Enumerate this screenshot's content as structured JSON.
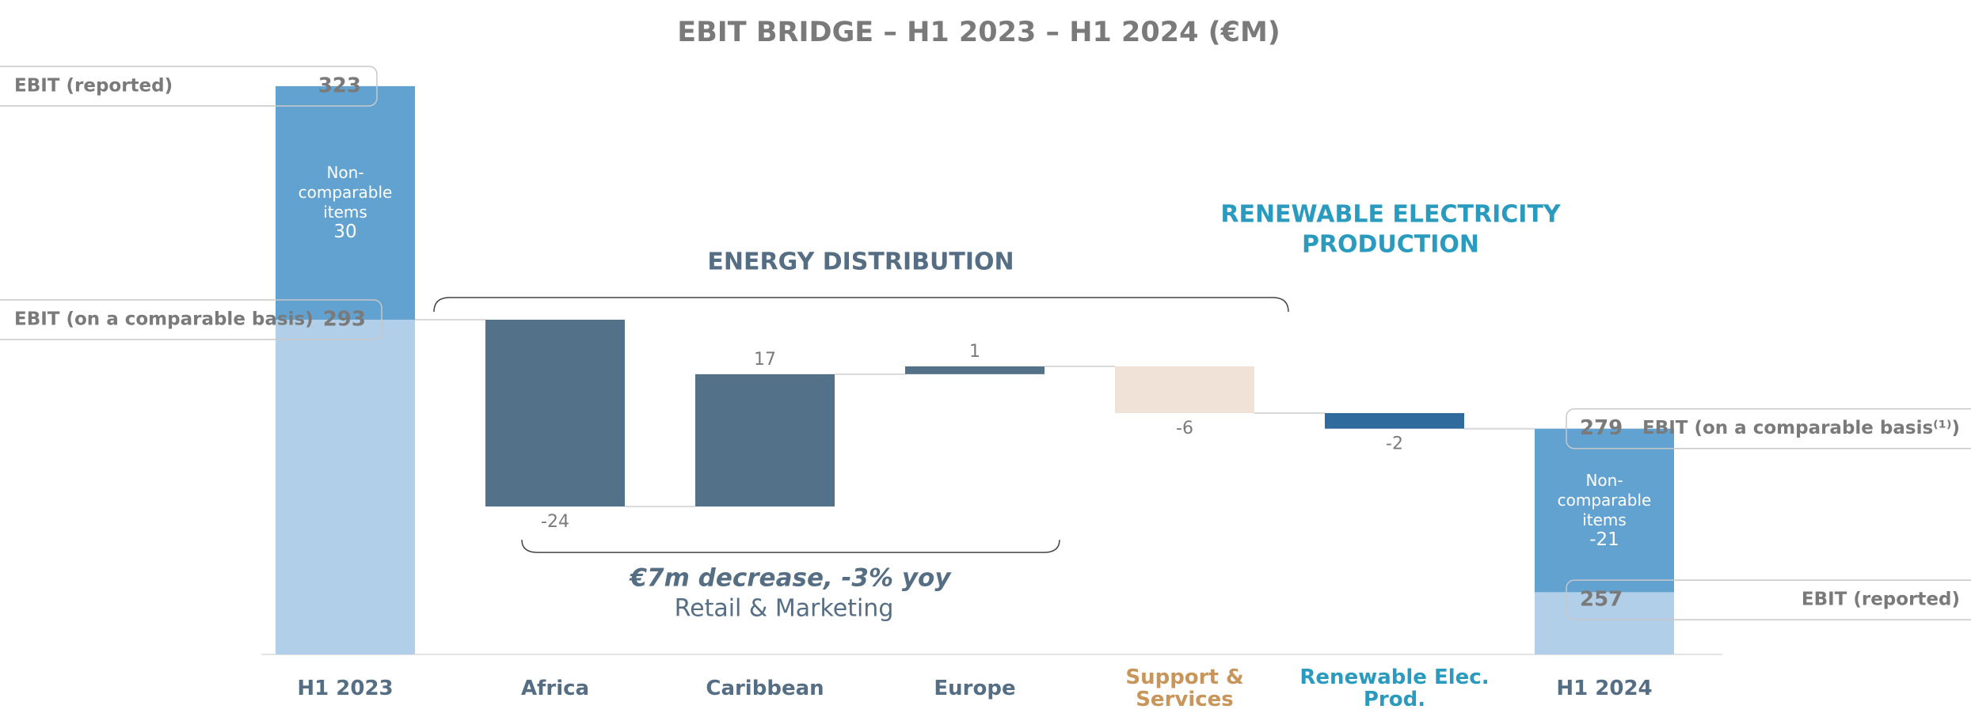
{
  "chart_data": {
    "type": "waterfall",
    "title": "EBIT BRIDGE – H1 2023 – H1 2024 (€M)",
    "categories": [
      "H1 2023",
      "Africa",
      "Caribbean",
      "Europe",
      "Support & Services",
      "Renewable Elec. Prod.",
      "H1 2024"
    ],
    "values": [
      293,
      -24,
      17,
      1,
      -6,
      -2,
      279
    ],
    "measures": [
      "total",
      "relative",
      "relative",
      "relative",
      "relative",
      "relative",
      "total"
    ],
    "colors": [
      "#b1cfe8",
      "#537289",
      "#537289",
      "#537289",
      "#f0e2d6",
      "#2f6b9c",
      "#b1cfe8"
    ],
    "label_colors": [
      "#556e84",
      "#556e84",
      "#556e84",
      "#556e84",
      "#c8955a",
      "#2a9bbf",
      "#556e84"
    ],
    "non_comparable": {
      "label": "Non-comparable items",
      "values": [
        30,
        null,
        null,
        null,
        null,
        null,
        -21
      ],
      "color": "#62a2d1"
    },
    "callouts": [
      {
        "label": "EBIT (reported)",
        "value": 323,
        "side": "left"
      },
      {
        "label": "EBIT (on a comparable basis)",
        "value": 293,
        "side": "left"
      },
      {
        "label": "EBIT (on a comparable basis⁽¹⁾)",
        "value": 279,
        "side": "right"
      },
      {
        "label": "EBIT (reported)",
        "value": 257,
        "side": "right"
      }
    ],
    "group_labels": {
      "energy": "ENERGY DISTRIBUTION",
      "renewable": [
        "RENEWABLE ELECTRICITY",
        "PRODUCTION"
      ]
    },
    "annotation": {
      "title": "€7m decrease, -3% yoy",
      "subtitle": "Retail & Marketing"
    },
    "ylim": [
      250,
      330
    ]
  }
}
